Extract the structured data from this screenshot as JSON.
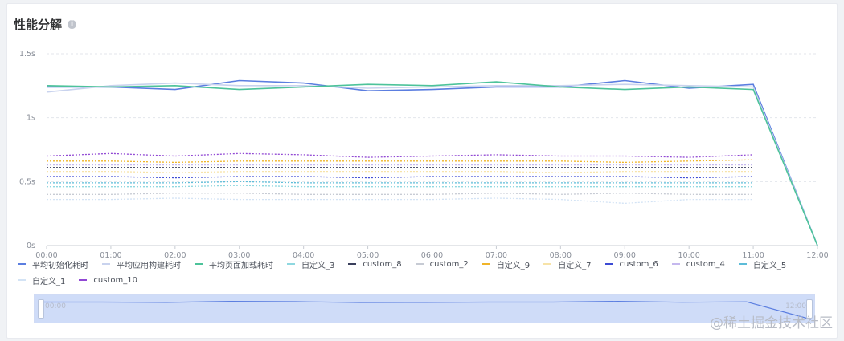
{
  "page": {
    "title": "性能分解",
    "watermark": "@稀土掘金技术社区"
  },
  "zoom": {
    "start_label": "00:00",
    "end_label": "12:00"
  },
  "chart_data": {
    "type": "line",
    "title": "性能分解",
    "x": [
      "00:00",
      "01:00",
      "02:00",
      "03:00",
      "04:00",
      "05:00",
      "06:00",
      "07:00",
      "08:00",
      "09:00",
      "10:00",
      "11:00",
      "12:00"
    ],
    "y_ticks": [
      "0s",
      "0.5s",
      "1s",
      "1.5s"
    ],
    "ylim": [
      0,
      1.5
    ],
    "grid": true,
    "legend_position": "bottom",
    "series": [
      {
        "name": "平均初始化耗时",
        "color": "#5b7ee0",
        "style": "solid",
        "values": [
          1.24,
          1.24,
          1.22,
          1.29,
          1.27,
          1.21,
          1.22,
          1.24,
          1.24,
          1.29,
          1.23,
          1.26,
          0
        ]
      },
      {
        "name": "平均应用构建耗时",
        "color": "#c9d3ee",
        "style": "solid",
        "values": [
          1.2,
          1.25,
          1.27,
          1.25,
          1.25,
          1.23,
          1.24,
          1.25,
          1.25,
          1.26,
          1.25,
          1.24,
          0
        ]
      },
      {
        "name": "平均页面加载耗时",
        "color": "#4dc39a",
        "style": "solid",
        "values": [
          1.25,
          1.24,
          1.25,
          1.22,
          1.24,
          1.26,
          1.25,
          1.28,
          1.24,
          1.22,
          1.24,
          1.22,
          0
        ]
      },
      {
        "name": "自定义_3",
        "color": "#8fd8e0",
        "style": "dashed",
        "values": [
          0.46,
          0.46,
          0.46,
          0.47,
          0.46,
          0.46,
          0.46,
          0.46,
          0.46,
          0.46,
          0.46,
          0.46,
          null
        ]
      },
      {
        "name": "custom_8",
        "color": "#3a3f5c",
        "style": "dashed",
        "values": [
          0.61,
          0.61,
          0.61,
          0.61,
          0.61,
          0.61,
          0.61,
          0.61,
          0.61,
          0.61,
          0.61,
          0.61,
          null
        ]
      },
      {
        "name": "custom_2",
        "color": "#c7cbd4",
        "style": "dashed",
        "values": [
          0.4,
          0.4,
          0.41,
          0.41,
          0.4,
          0.4,
          0.4,
          0.41,
          0.4,
          0.41,
          0.4,
          0.4,
          null
        ]
      },
      {
        "name": "自定义_9",
        "color": "#f0b429",
        "style": "dashed",
        "values": [
          0.66,
          0.66,
          0.65,
          0.66,
          0.66,
          0.66,
          0.66,
          0.66,
          0.66,
          0.65,
          0.66,
          0.67,
          null
        ]
      },
      {
        "name": "自定义_7",
        "color": "#f7e3a8",
        "style": "dashed",
        "values": [
          0.58,
          0.58,
          0.57,
          0.58,
          0.58,
          0.58,
          0.58,
          0.58,
          0.57,
          0.58,
          0.58,
          0.58,
          null
        ]
      },
      {
        "name": "custom_6",
        "color": "#3d4bd4",
        "style": "dashed",
        "values": [
          0.54,
          0.54,
          0.53,
          0.54,
          0.54,
          0.53,
          0.54,
          0.54,
          0.54,
          0.54,
          0.53,
          0.54,
          null
        ]
      },
      {
        "name": "custom_4",
        "color": "#c5b8ee",
        "style": "dashed",
        "values": [
          0.63,
          0.63,
          0.63,
          0.63,
          0.63,
          0.63,
          0.63,
          0.63,
          0.63,
          0.63,
          0.63,
          0.63,
          null
        ]
      },
      {
        "name": "自定义_5",
        "color": "#5cbcd8",
        "style": "dashed",
        "values": [
          0.49,
          0.49,
          0.49,
          0.5,
          0.49,
          0.49,
          0.49,
          0.49,
          0.49,
          0.49,
          0.49,
          0.49,
          null
        ]
      },
      {
        "name": "自定义_1",
        "color": "#d3e3f5",
        "style": "dashed",
        "values": [
          0.36,
          0.36,
          0.37,
          0.36,
          0.36,
          0.36,
          0.36,
          0.37,
          0.36,
          0.33,
          0.36,
          0.36,
          null
        ]
      },
      {
        "name": "custom_10",
        "color": "#9148d4",
        "style": "dashed",
        "values": [
          0.7,
          0.72,
          0.7,
          0.72,
          0.71,
          0.69,
          0.7,
          0.71,
          0.7,
          0.7,
          0.69,
          0.71,
          null
        ]
      }
    ]
  }
}
